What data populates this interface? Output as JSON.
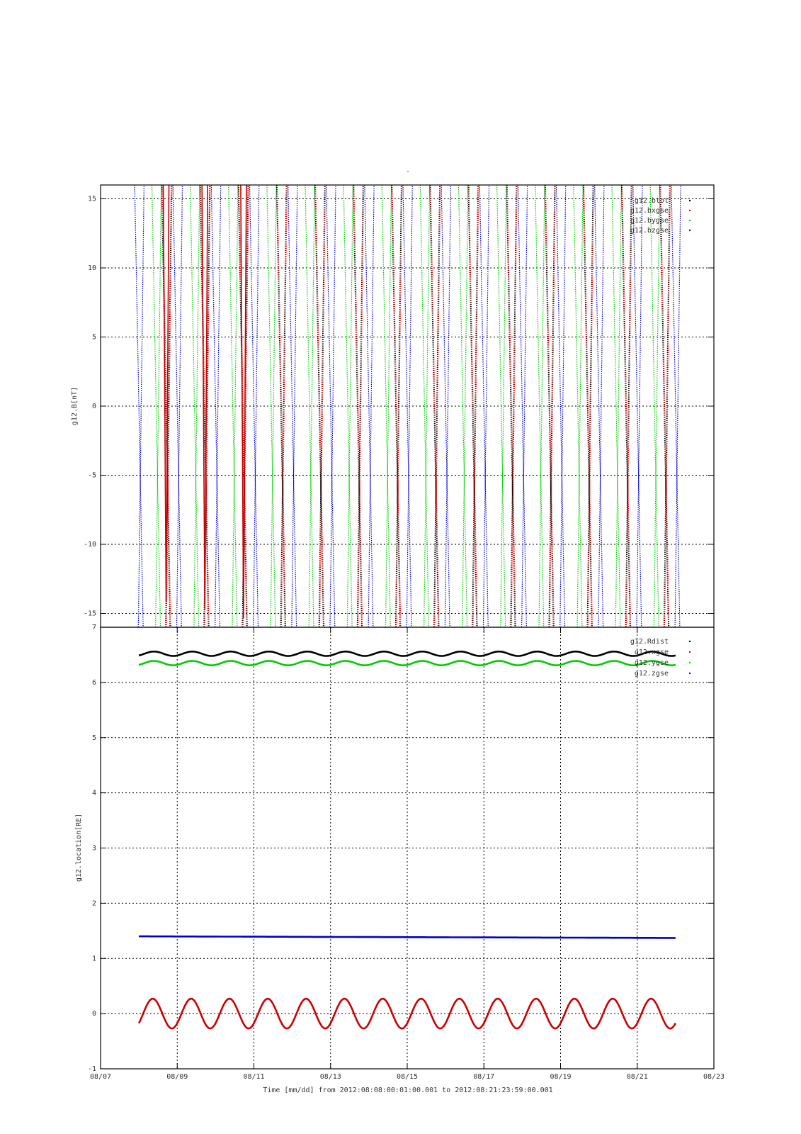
{
  "figure": {
    "title": "-",
    "time_label": "Time [mm/dd]  from 2012:08:08:00:01:00.001  to  2012:08:21:23:59:00.001"
  },
  "chart_data": [
    {
      "type": "line",
      "ylabel": "g12.B[nT]",
      "xlim": [
        "08/07",
        "08/23"
      ],
      "ylim": [
        -16,
        16
      ],
      "yticks": [
        15,
        10,
        5,
        0,
        -5,
        -10,
        -15
      ],
      "grid": true,
      "legend_position": "top-right",
      "series": [
        {
          "name": "g12.btot",
          "color": "#000000",
          "period_days": 1.0,
          "phase_day": 0.7,
          "drop_days": 0.07,
          "min": -16,
          "max": 16
        },
        {
          "name": "g12.bxgse",
          "color": "#cc0000",
          "period_days": 1.0,
          "phase_day": 0.72,
          "drop_days": 0.07,
          "min": -16,
          "max": 16
        },
        {
          "name": "g12.bygse",
          "color": "#00cc00",
          "period_days": 1.0,
          "phase_day": 0.45,
          "drop_days": 0.06,
          "min": -16,
          "max": 16
        },
        {
          "name": "g12.bzgse",
          "color": "#0000cc",
          "period_days": 1.0,
          "phase_day": 0.0,
          "drop_days": 0.06,
          "min": -16,
          "max": 16
        }
      ]
    },
    {
      "type": "line",
      "ylabel": "g12.location[RE]",
      "xlabel": "Time [mm/dd]",
      "xlim": [
        "08/07",
        "08/23"
      ],
      "xticks": [
        "08/07",
        "08/09",
        "08/11",
        "08/13",
        "08/15",
        "08/17",
        "08/19",
        "08/21",
        "08/23"
      ],
      "ylim": [
        -1,
        7
      ],
      "yticks": [
        7,
        6,
        5,
        4,
        3,
        2,
        1,
        0,
        -1
      ],
      "grid": true,
      "legend_position": "top-right",
      "series": [
        {
          "name": "g12.Rdist",
          "color": "#000000",
          "mean": 6.52,
          "amplitude": 0.04,
          "period_days": 1.0
        },
        {
          "name": "g12.xgse",
          "color": "#cc0000",
          "mean": 0.0,
          "amplitude": 0.27,
          "period_days": 1.0
        },
        {
          "name": "g12.ygse",
          "color": "#00cc00",
          "mean": 6.35,
          "amplitude": 0.04,
          "period_days": 1.0
        },
        {
          "name": "g12.zgse",
          "color": "#0000cc",
          "mean": 1.4,
          "trend_end": 1.37,
          "amplitude": 0.0,
          "period_days": 1.0
        }
      ],
      "x_start_day": 1.0,
      "x_end_day": 15.0
    }
  ]
}
